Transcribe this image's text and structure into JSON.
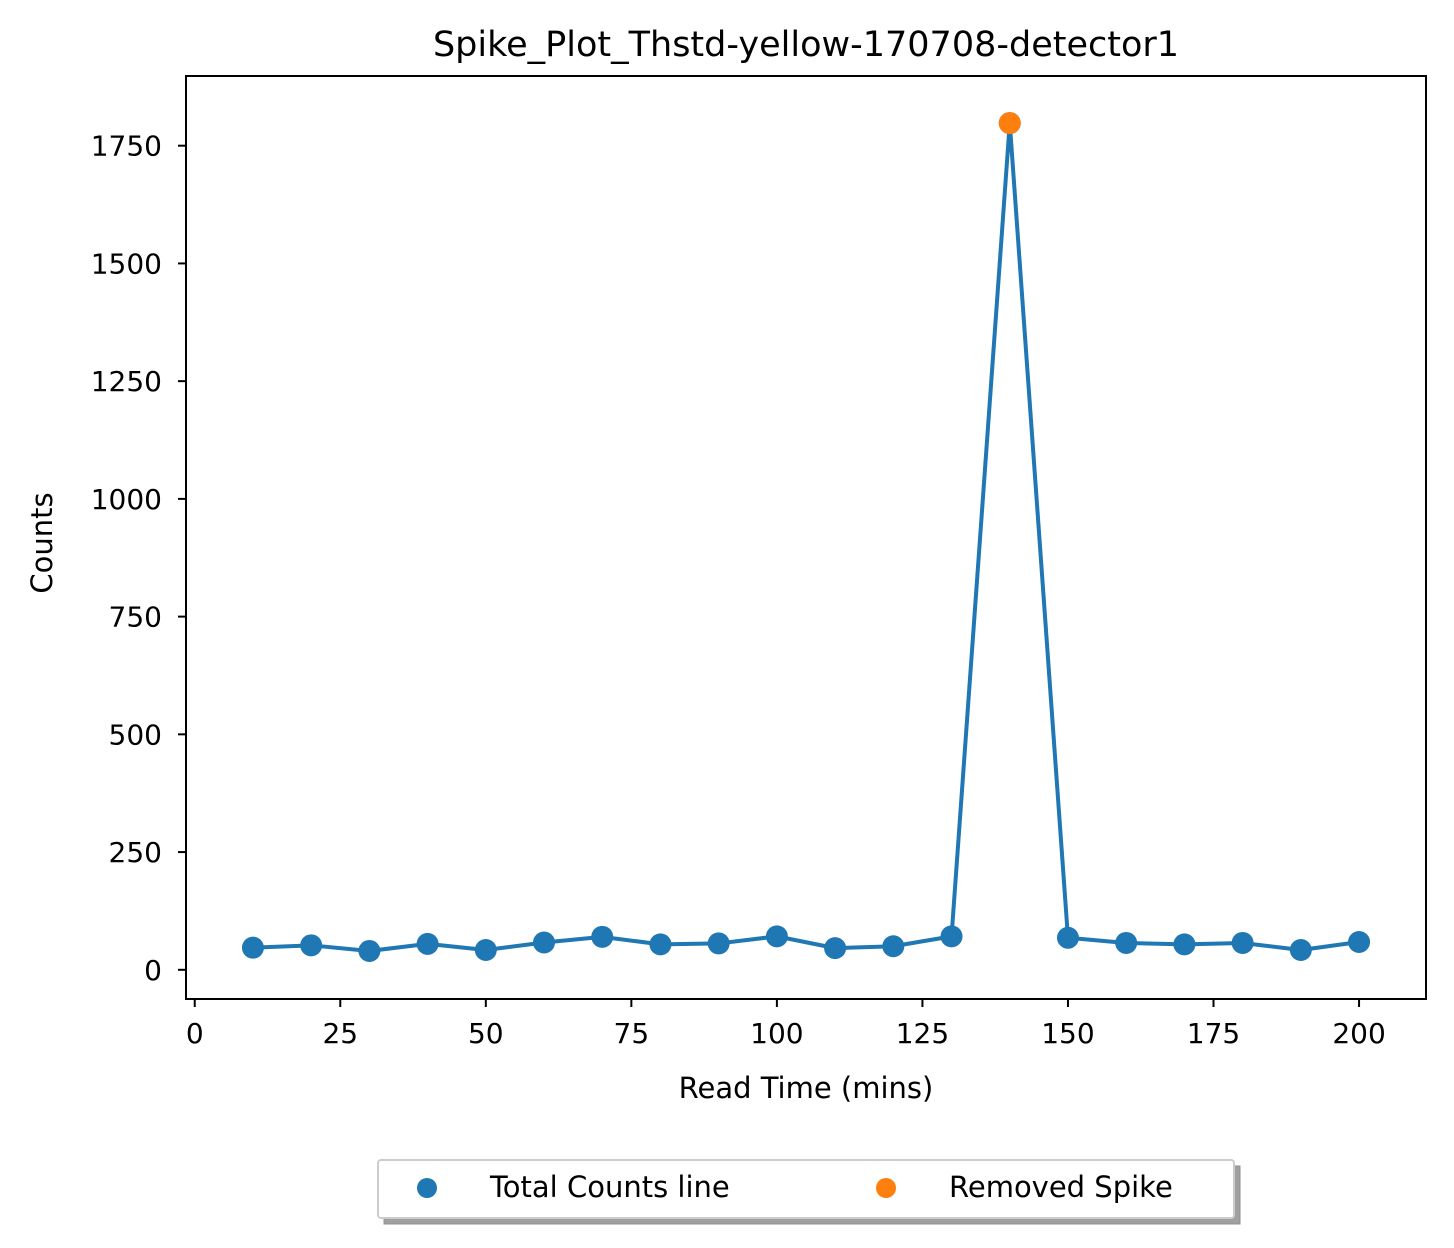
{
  "chart_data": {
    "type": "line",
    "title": "Spike_Plot_Thstd-yellow-170708-detector1",
    "xlabel": "Read Time (mins)",
    "ylabel": "Counts",
    "xlim": [
      -1.5,
      211.5
    ],
    "ylim": [
      -62,
      1898
    ],
    "xticks": [
      0,
      25,
      50,
      75,
      100,
      125,
      150,
      175,
      200
    ],
    "xtick_labels": [
      "0",
      "25",
      "50",
      "75",
      "100",
      "125",
      "150",
      "175",
      "200"
    ],
    "yticks": [
      0,
      250,
      500,
      750,
      1000,
      1250,
      1500,
      1750
    ],
    "ytick_labels": [
      "0",
      "250",
      "500",
      "750",
      "1000",
      "1250",
      "1500",
      "1750"
    ],
    "grid": false,
    "legend_position": "below-center",
    "series": [
      {
        "name": "Total Counts line",
        "color": "#1f77b4",
        "mode": "line+markers",
        "x": [
          10,
          20,
          30,
          40,
          50,
          60,
          70,
          80,
          90,
          100,
          110,
          120,
          130,
          140,
          150,
          160,
          170,
          180,
          190,
          200
        ],
        "y": [
          47,
          52,
          40,
          55,
          42,
          58,
          70,
          54,
          56,
          71,
          46,
          50,
          71,
          1798,
          68,
          57,
          54,
          57,
          42,
          59
        ]
      },
      {
        "name": "Removed Spike",
        "color": "#ff7f0e",
        "mode": "markers",
        "x": [
          140
        ],
        "y": [
          1798
        ]
      }
    ]
  }
}
